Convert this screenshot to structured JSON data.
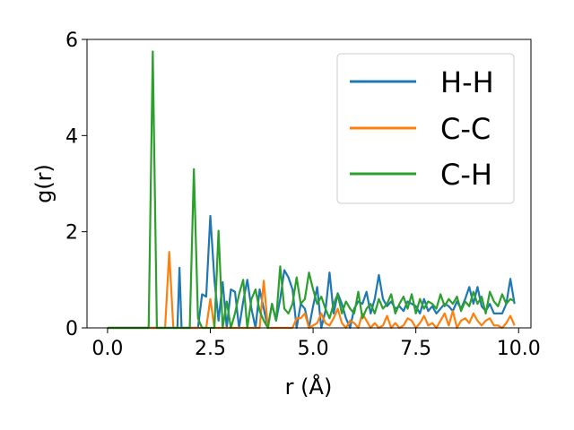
{
  "chart_data": {
    "type": "line",
    "title": "",
    "xlabel": "r (Å)",
    "ylabel": "g(r)",
    "xlim": [
      -0.5,
      10.3
    ],
    "ylim": [
      0,
      6
    ],
    "xticks": [
      0.0,
      2.5,
      5.0,
      7.5,
      10.0
    ],
    "xtick_labels": [
      "0.0",
      "2.5",
      "5.0",
      "7.5",
      "10.0"
    ],
    "yticks": [
      0,
      2,
      4,
      6
    ],
    "ytick_labels": [
      "0",
      "2",
      "4",
      "6"
    ],
    "grid": false,
    "legend_position": "top-right",
    "series": [
      {
        "name": "H-H",
        "color": "#1f77b4",
        "x": [
          0,
          0.5,
          1.0,
          1.5,
          1.6,
          1.7,
          1.75,
          1.8,
          1.9,
          2.0,
          2.1,
          2.2,
          2.3,
          2.4,
          2.5,
          2.6,
          2.7,
          2.8,
          2.9,
          3.0,
          3.1,
          3.2,
          3.3,
          3.4,
          3.5,
          3.6,
          3.7,
          3.8,
          3.9,
          4.0,
          4.1,
          4.2,
          4.3,
          4.4,
          4.5,
          4.6,
          4.7,
          4.8,
          4.9,
          5.0,
          5.1,
          5.2,
          5.3,
          5.4,
          5.5,
          5.6,
          5.7,
          5.8,
          5.9,
          6.0,
          6.1,
          6.2,
          6.3,
          6.4,
          6.5,
          6.6,
          6.7,
          6.8,
          6.9,
          7.0,
          7.1,
          7.2,
          7.3,
          7.4,
          7.5,
          7.6,
          7.7,
          7.8,
          7.9,
          8.0,
          8.1,
          8.2,
          8.3,
          8.4,
          8.5,
          8.6,
          8.7,
          8.8,
          8.9,
          9.0,
          9.1,
          9.2,
          9.3,
          9.4,
          9.5,
          9.6,
          9.7,
          9.8,
          9.9
        ],
        "y": [
          0,
          0,
          0,
          0,
          0,
          0,
          1.25,
          0,
          0,
          0,
          0,
          0,
          0.7,
          0.65,
          2.33,
          1.0,
          0.15,
          0.95,
          0,
          0.8,
          0.75,
          0,
          0.55,
          1.0,
          0.4,
          0,
          0.8,
          0.4,
          0,
          0.5,
          0.15,
          0.6,
          1.2,
          1.05,
          0.8,
          0,
          0.5,
          0.4,
          0,
          0.45,
          0.85,
          0,
          0.35,
          1.15,
          0.3,
          0.72,
          0.5,
          0.2,
          0,
          0.4,
          0.55,
          0.5,
          0.75,
          0.3,
          0.6,
          1.1,
          0.6,
          0.45,
          0.55,
          0.4,
          0.45,
          0.35,
          0.55,
          0.5,
          0.45,
          0.3,
          0.6,
          0.35,
          0.45,
          0.3,
          0.4,
          0.5,
          0.45,
          0.35,
          0.55,
          0.4,
          0.6,
          0.85,
          0.5,
          0.85,
          0.45,
          0.35,
          0.5,
          0.3,
          0.3,
          0.3,
          0.5,
          1.02,
          0.5
        ]
      },
      {
        "name": "C-C",
        "color": "#ff7f0e",
        "x": [
          0,
          0.5,
          1.0,
          1.3,
          1.4,
          1.5,
          1.6,
          1.7,
          2.0,
          2.3,
          2.4,
          2.5,
          2.6,
          2.7,
          3.0,
          3.5,
          3.7,
          3.8,
          3.9,
          4.0,
          4.5,
          4.6,
          4.7,
          4.8,
          4.9,
          5.0,
          5.1,
          5.2,
          5.3,
          5.4,
          5.5,
          5.6,
          5.7,
          5.8,
          5.9,
          6.0,
          6.1,
          6.2,
          6.3,
          6.4,
          6.5,
          6.6,
          6.7,
          6.8,
          6.9,
          7.0,
          7.1,
          7.2,
          7.3,
          7.4,
          7.5,
          7.6,
          7.7,
          7.8,
          7.9,
          8.0,
          8.1,
          8.2,
          8.3,
          8.4,
          8.5,
          8.6,
          8.7,
          8.8,
          8.9,
          9.0,
          9.1,
          9.2,
          9.3,
          9.4,
          9.5,
          9.6,
          9.7,
          9.8,
          9.9
        ],
        "y": [
          0,
          0,
          0,
          0,
          0,
          1.58,
          0,
          0,
          0,
          0,
          0,
          0.6,
          0,
          0,
          0,
          0,
          0,
          0.98,
          0,
          0,
          0,
          0.2,
          0.2,
          0.3,
          0,
          0.05,
          0.1,
          0.3,
          0.1,
          0.05,
          0.2,
          0.4,
          0.1,
          0.0,
          0.15,
          0.1,
          0.0,
          0.3,
          0.15,
          0.0,
          0.1,
          0.0,
          0.05,
          0.25,
          0.0,
          0.1,
          0.0,
          0.05,
          0.2,
          0.15,
          0.0,
          0.1,
          0.25,
          0.05,
          0.1,
          0.0,
          0.15,
          0.3,
          0.05,
          0.35,
          0.0,
          0.15,
          0.2,
          0.1,
          0.3,
          0.15,
          0.05,
          0.15,
          0.2,
          0.05,
          0.05,
          0.0,
          0.1,
          0.25,
          0.05
        ]
      },
      {
        "name": "C-H",
        "color": "#2ca02c",
        "x": [
          0,
          0.5,
          0.9,
          1.0,
          1.1,
          1.2,
          1.5,
          1.9,
          2.0,
          2.1,
          2.2,
          2.3,
          2.5,
          2.6,
          2.7,
          2.8,
          2.9,
          3.0,
          3.1,
          3.2,
          3.3,
          3.4,
          3.5,
          3.6,
          3.7,
          3.8,
          3.9,
          4.0,
          4.1,
          4.2,
          4.3,
          4.4,
          4.5,
          4.6,
          4.7,
          4.8,
          4.9,
          5.0,
          5.1,
          5.2,
          5.3,
          5.4,
          5.5,
          5.6,
          5.7,
          5.8,
          5.9,
          6.0,
          6.1,
          6.2,
          6.3,
          6.4,
          6.5,
          6.6,
          6.7,
          6.8,
          6.9,
          7.0,
          7.1,
          7.2,
          7.3,
          7.4,
          7.5,
          7.6,
          7.7,
          7.8,
          7.9,
          8.0,
          8.1,
          8.2,
          8.3,
          8.4,
          8.5,
          8.6,
          8.7,
          8.8,
          8.9,
          9.0,
          9.1,
          9.2,
          9.3,
          9.4,
          9.5,
          9.6,
          9.7,
          9.8,
          9.9
        ],
        "y": [
          0,
          0,
          0,
          0,
          5.75,
          0,
          0,
          0,
          0,
          3.3,
          0.2,
          0,
          0,
          0,
          2.02,
          0,
          0.55,
          0,
          0.3,
          0.7,
          1.0,
          0,
          0.6,
          0.8,
          0.35,
          0.15,
          0,
          0.5,
          0.15,
          1.28,
          0.4,
          0.3,
          0.5,
          1.05,
          0.5,
          0.6,
          1.15,
          0.8,
          0.5,
          0.65,
          0.4,
          0.2,
          0.5,
          0.7,
          0.3,
          0.55,
          0.4,
          0.3,
          0.75,
          0.2,
          0.4,
          0.5,
          0.3,
          0.6,
          0.4,
          0.5,
          0.7,
          0.3,
          0.5,
          0.65,
          0.4,
          0.7,
          0.3,
          0.6,
          0.4,
          0.55,
          0.5,
          0.4,
          0.7,
          0.45,
          0.6,
          0.5,
          0.65,
          0.35,
          0.55,
          0.45,
          0.75,
          0.5,
          0.65,
          0.3,
          0.75,
          0.55,
          0.45,
          0.7,
          0.5,
          0.6,
          0.55
        ]
      }
    ]
  }
}
